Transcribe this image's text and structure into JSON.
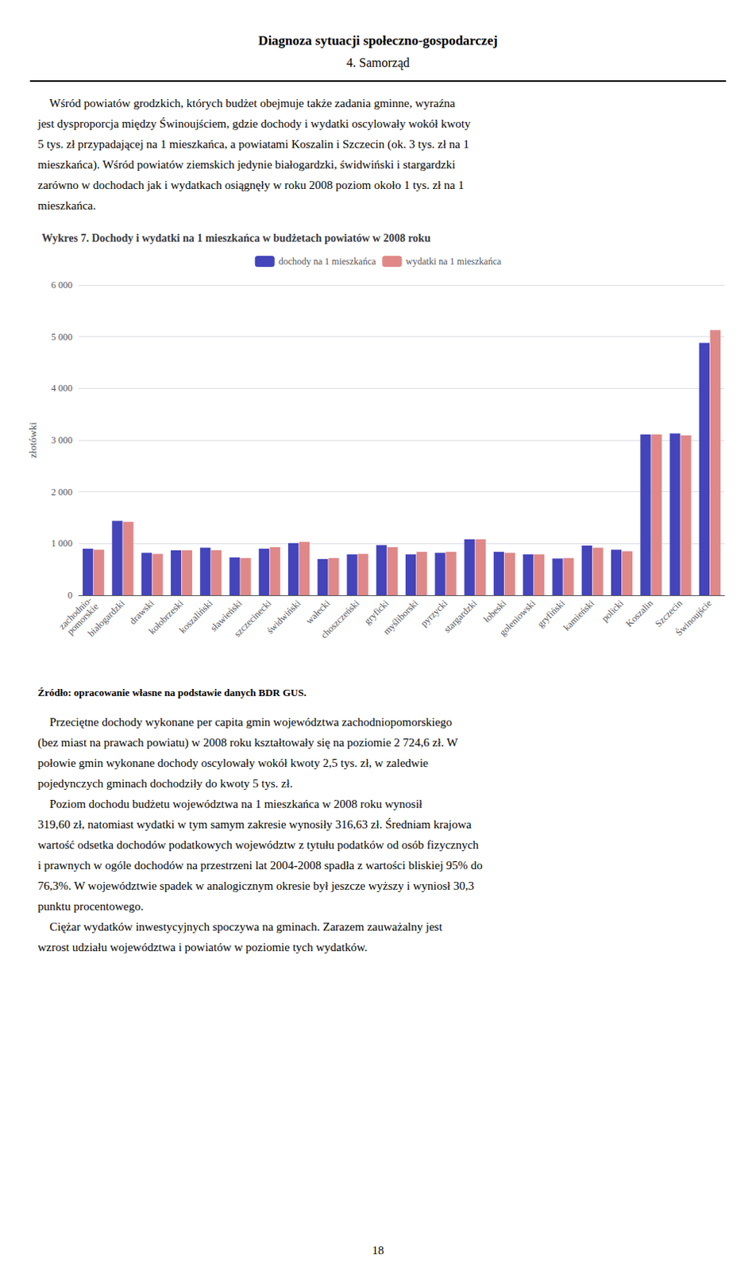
{
  "header_lines": [
    "Diagnoza sytuacji społeczno-gospodarczej",
    "4. Samorząd"
  ],
  "text_before": [
    "    Wśród powiatów grodzkich, których budżet obejmuje także zadania gminne, wyraźna",
    "jest dysproporcja między Świnoujściem, gdzie dochody i wydatki oscylowały wokół kwoty",
    "5 tys. zł przypadającej na 1 mieszkańca, a powiatami Koszalin i Szczecin (ok. 3 tys. zł na 1",
    "mieszkańca). Wśród powiatów ziemskich jedynie białogardzki, świdwiński i stargardzki",
    "zarówno w dochodach jak i wydatkach osiągnęły w roku 2008 poziom około 1 tys. zł na 1",
    "mieszkańca."
  ],
  "chart_data": {
    "type": "bar",
    "title": "Wykres 7. Dochody i wydatki na 1 mieszkańca w budżetach powiatów w 2008 roku",
    "ylabel": "złotówki",
    "categories": [
      "zachodnio-\npomorskie",
      "białogardzki",
      "drawski",
      "kołobrzeski",
      "koszaliński",
      "sławieński",
      "szczecinecki",
      "świdwiński",
      "wałecki",
      "choszczeński",
      "gryficki",
      "myśliborski",
      "pyrzycki",
      "stargardzki",
      "łobeski",
      "goleniowski",
      "gryfiński",
      "kamieński",
      "policki",
      "Koszalin",
      "Szczecin",
      "Świnoujście"
    ],
    "series": [
      {
        "name": "dochody na 1 mieszkańca",
        "color": "#4444bb",
        "values": [
          900,
          1440,
          820,
          870,
          920,
          730,
          900,
          1010,
          700,
          790,
          970,
          790,
          820,
          1080,
          840,
          790,
          710,
          960,
          880,
          3110,
          3130,
          4880
        ]
      },
      {
        "name": "wydatki na 1 mieszkańca",
        "color": "#e08888",
        "values": [
          880,
          1420,
          800,
          870,
          870,
          720,
          930,
          1030,
          720,
          800,
          930,
          840,
          840,
          1080,
          820,
          790,
          720,
          920,
          850,
          3110,
          3090,
          5130
        ]
      }
    ],
    "ylim": [
      0,
      6000
    ],
    "yticks": [
      0,
      {
        "value": 1000,
        "label": "1 000"
      },
      {
        "value": 2000,
        "label": "2 000"
      },
      {
        "value": 3000,
        "label": "3 000"
      },
      {
        "value": 4000,
        "label": "4 000"
      },
      {
        "value": 5000,
        "label": "5 000"
      },
      {
        "value": 6000,
        "label": "6 000"
      }
    ],
    "grid": true,
    "legend": "upper center"
  },
  "source": "Źródło: opracowanie własne na podstawie danych BDR GUS.",
  "text_after": [
    "    Przeciętne dochody wykonane per capita gmin województwa zachodniopomorskiego",
    "(bez miast na prawach powiatu) w 2008 roku kształtowały się na poziomie 2 724,6 zł. W",
    "połowie gmin wykonane dochody oscylowały wokół kwoty 2,5 tys. zł, w zaledwie",
    "pojedynczych gminach dochodziły do kwoty 5 tys. zł.",
    "    Poziom dochodu budżetu województwa na 1 mieszkańca w 2008 roku wynosił",
    "319,60 zł, natomiast wydatki w tym samym zakresie wynosiły 316,63 zł. Średniam krajowa",
    "wartość odsetka dochodów podatkowych województw z tytułu podatków od osób fizycznych",
    "i prawnych w ogóle dochodów na przestrzeni lat 2004-2008 spadła z wartości bliskiej 95% do",
    "76,3%. W województwie spadek w analogicznym okresie był jeszcze wyższy i wyniosł 30,3",
    "punktu procentowego.",
    "    Ciężar wydatków inwestycyjnych spoczywa na gminach. Zarazem zauważalny jest",
    "wzrost udziału województwa i powiatów w poziomie tych wydatków."
  ],
  "page_number": "18"
}
